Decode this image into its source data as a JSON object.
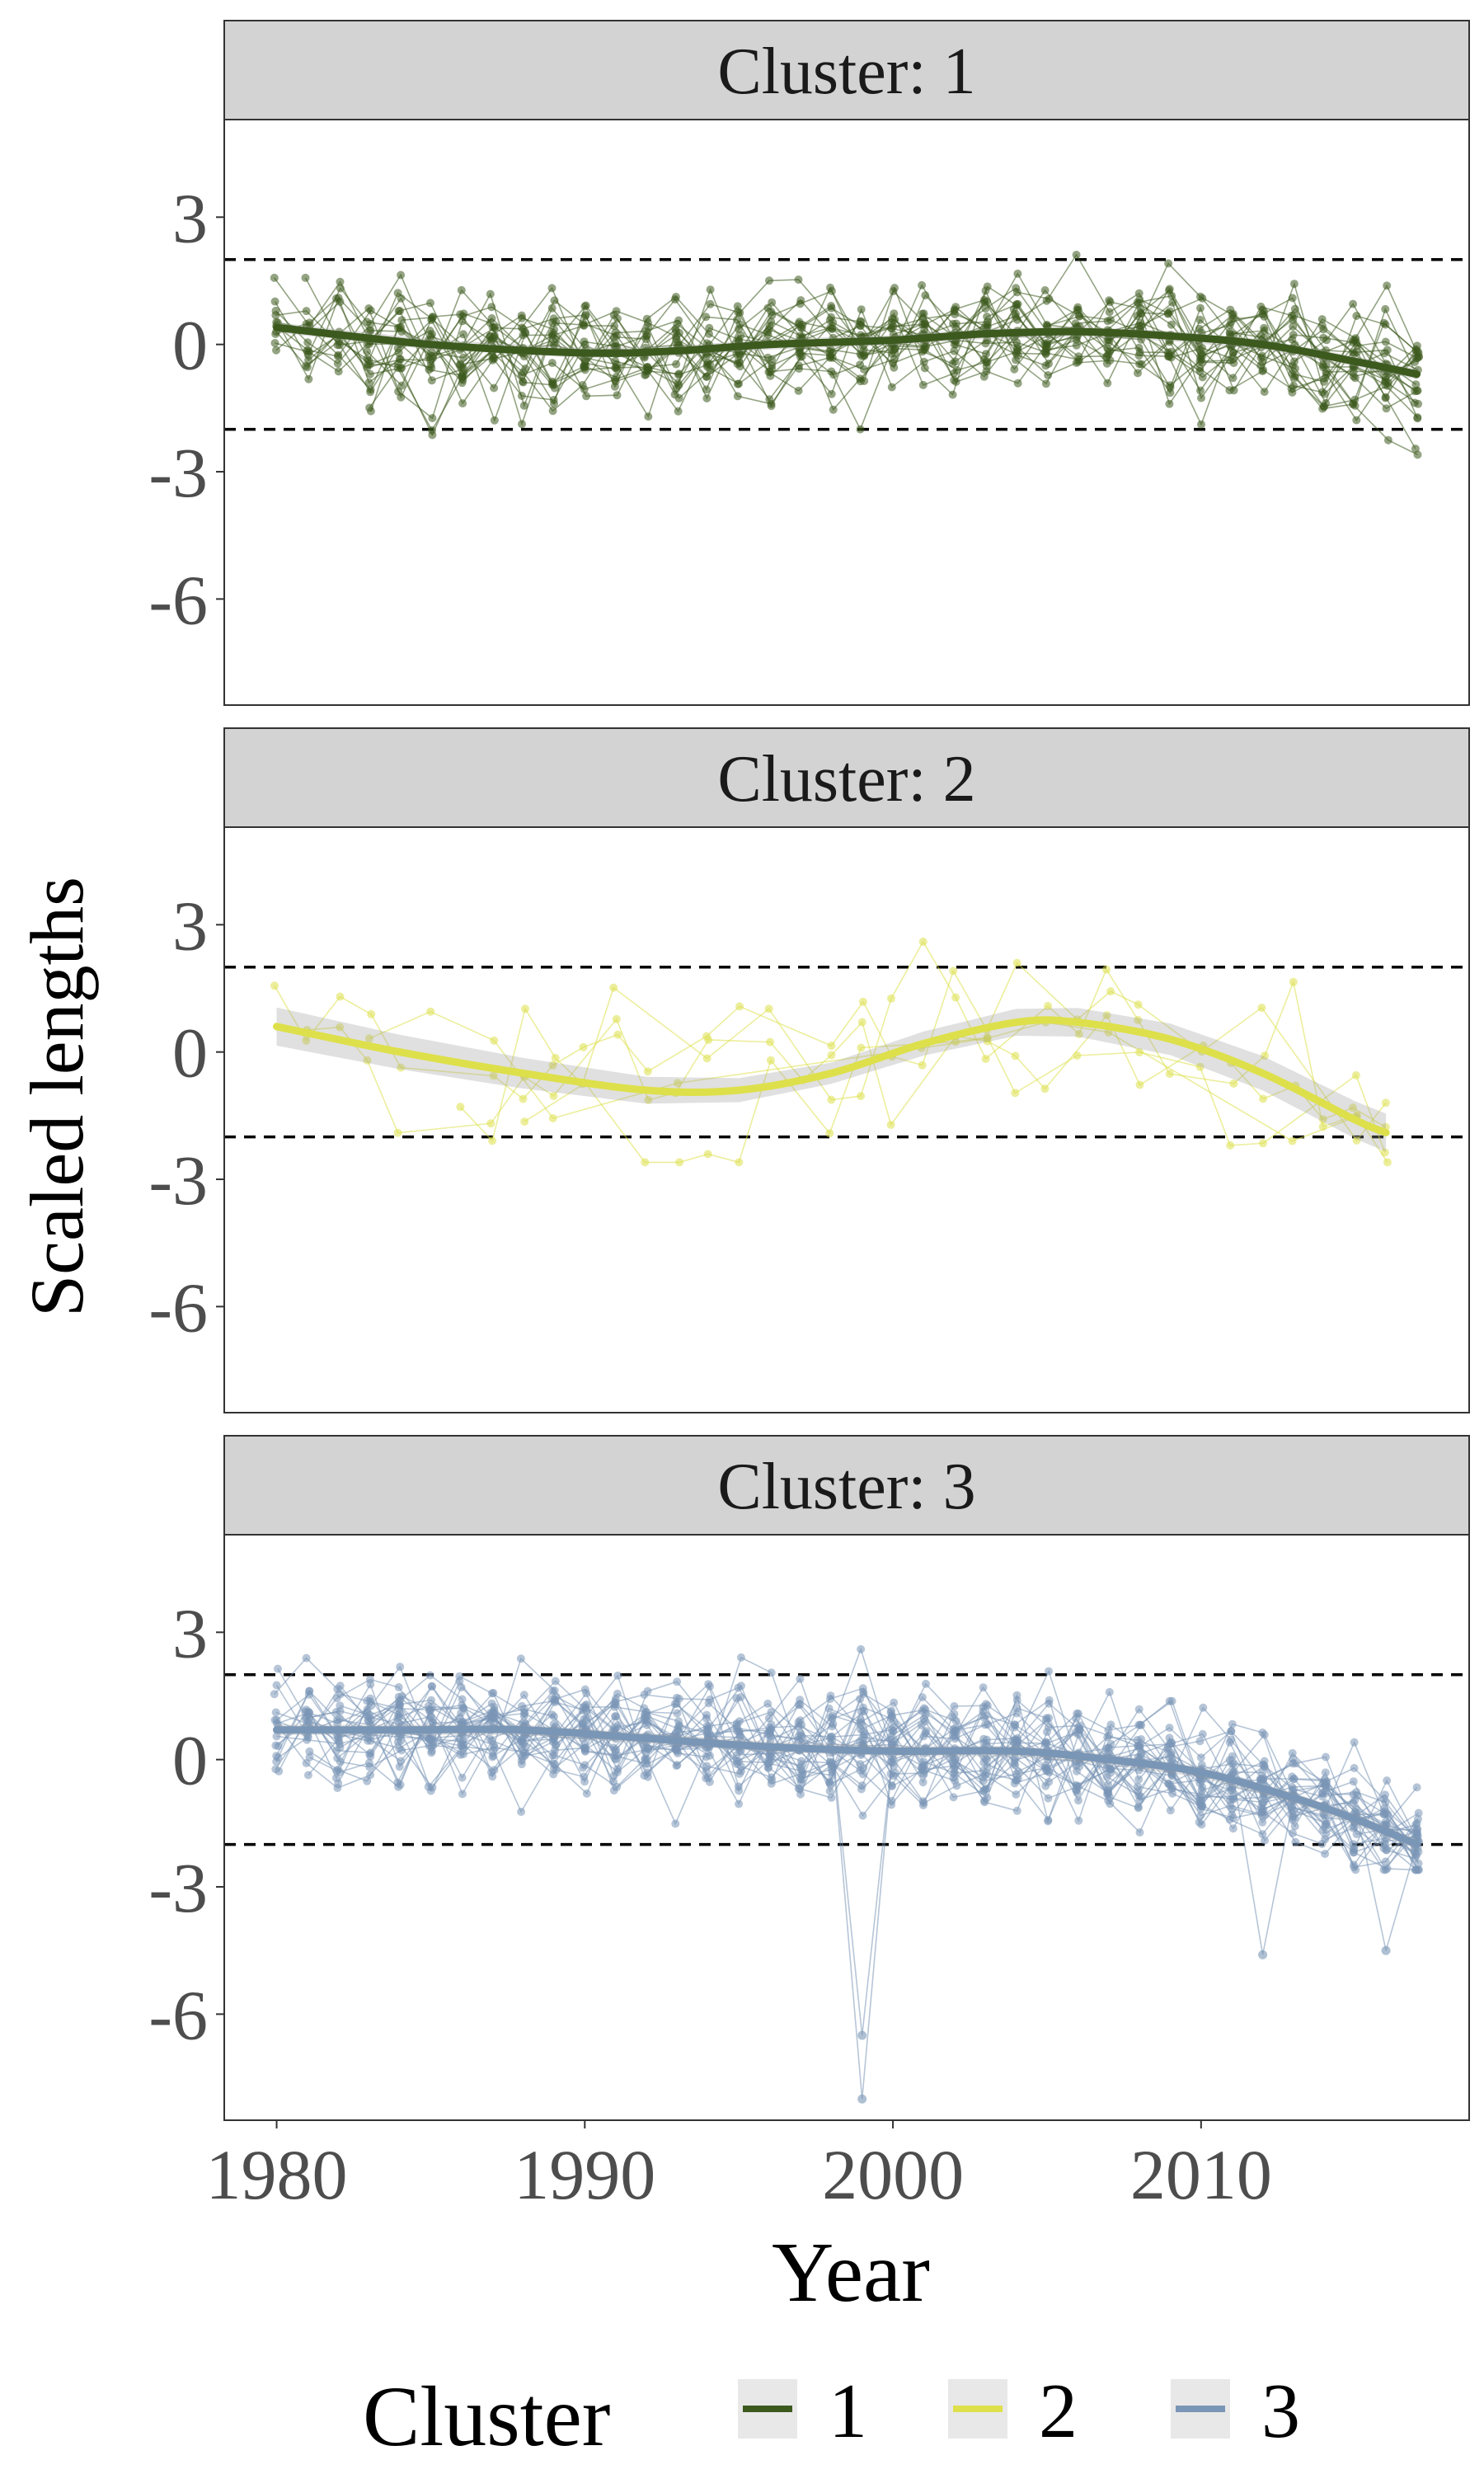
{
  "figure": {
    "ylabel": "Scaled lengths",
    "xlabel": "Year",
    "legend": {
      "title": "Cluster",
      "position": "bottom",
      "items": [
        {
          "label": "1",
          "color": "#3c5a1e"
        },
        {
          "label": "2",
          "color": "#dde04a"
        },
        {
          "label": "3",
          "color": "#7a96b6"
        }
      ]
    }
  },
  "chart_data": [
    {
      "type": "line",
      "title": "Cluster: 1",
      "xlim": [
        1978.3,
        2018.7
      ],
      "ylim": [
        -8.5,
        5.3
      ],
      "x_ticks": [
        1980,
        1990,
        2000,
        2010
      ],
      "y_ticks": [
        3,
        0,
        -3,
        -6
      ],
      "reference_lines": [
        2,
        -2
      ],
      "color": "#3c5a1e",
      "n_series": 22,
      "trend": {
        "x": [
          1980,
          1985,
          1990,
          1993,
          1996,
          2000,
          2003,
          2006,
          2009,
          2012,
          2015,
          2017
        ],
        "y": [
          0.4,
          0.0,
          -0.2,
          -0.15,
          0.0,
          0.1,
          0.25,
          0.3,
          0.2,
          0.0,
          -0.4,
          -0.7
        ]
      }
    },
    {
      "type": "line",
      "title": "Cluster: 2",
      "xlim": [
        1978.3,
        2018.7
      ],
      "ylim": [
        -8.5,
        5.3
      ],
      "x_ticks": [
        1980,
        1990,
        2000,
        2010
      ],
      "y_ticks": [
        3,
        0,
        -3,
        -6
      ],
      "reference_lines": [
        2,
        -2
      ],
      "color": "#dde04a",
      "n_series": 5,
      "trend": {
        "x": [
          1980,
          1984,
          1988,
          1992,
          1995,
          1998,
          2001,
          2004,
          2006,
          2009,
          2012,
          2015,
          2016
        ],
        "y": [
          0.6,
          0.0,
          -0.5,
          -0.9,
          -0.9,
          -0.5,
          0.2,
          0.7,
          0.7,
          0.3,
          -0.5,
          -1.6,
          -1.9
        ]
      }
    },
    {
      "type": "line",
      "title": "Cluster: 3",
      "xlim": [
        1978.3,
        2018.7
      ],
      "ylim": [
        -8.5,
        5.3
      ],
      "x_ticks": [
        1980,
        1990,
        2000,
        2010
      ],
      "y_ticks": [
        3,
        0,
        -3,
        -6
      ],
      "reference_lines": [
        2,
        -2
      ],
      "color": "#7a96b6",
      "n_series": 30,
      "trend": {
        "x": [
          1980,
          1984,
          1988,
          1992,
          1996,
          2000,
          2004,
          2007,
          2010,
          2013,
          2015,
          2017
        ],
        "y": [
          0.7,
          0.7,
          0.7,
          0.5,
          0.3,
          0.2,
          0.2,
          0.0,
          -0.3,
          -0.9,
          -1.4,
          -2.0
        ]
      },
      "notable_points": [
        {
          "x": 1999,
          "y": -6.5
        },
        {
          "x": 1999,
          "y": -8.0
        },
        {
          "x": 2012,
          "y": -4.6
        },
        {
          "x": 2016,
          "y": -4.5
        }
      ]
    }
  ]
}
